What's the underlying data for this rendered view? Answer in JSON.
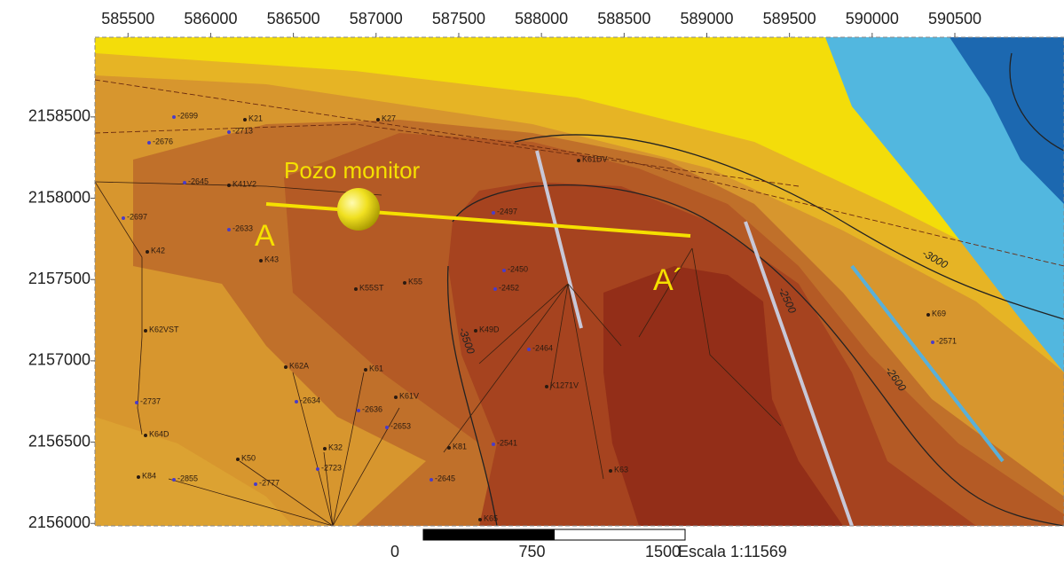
{
  "map": {
    "xlim": [
      585300,
      591160
    ],
    "ylim": [
      2155985,
      2158990
    ],
    "xticks": [
      585500,
      586000,
      586500,
      587000,
      587500,
      588000,
      588500,
      589000,
      589500,
      590000,
      590500
    ],
    "yticks": [
      2156000,
      2156500,
      2157000,
      2157500,
      2158000,
      2158500
    ],
    "section": {
      "start_label": "A",
      "end_label": "A´",
      "well_label": "Pozo monitor"
    },
    "wells": [
      "K21",
      "K27",
      "K41V2",
      "K42",
      "K43",
      "K55ST",
      "K55",
      "K61DV",
      "K62VST",
      "K64D",
      "K84",
      "K50",
      "K62A",
      "K61",
      "K61V",
      "K32",
      "K1271V",
      "K81",
      "K63",
      "K65",
      "K69",
      "K49D",
      "-2699",
      "-2676",
      "-2713",
      "-2645",
      "-2697",
      "-2633",
      "-2737",
      "-2855",
      "-2777",
      "-2723",
      "-2634",
      "-2636",
      "-2653",
      "-2497",
      "-2450",
      "-2452",
      "-2464",
      "-2541",
      "-2645",
      "-2571"
    ],
    "contours": [
      "-3000",
      "-2500",
      "-3500",
      "-2600"
    ],
    "scale": {
      "ticks": [
        0,
        750,
        1500
      ],
      "label": "Escala 1:11569"
    }
  }
}
